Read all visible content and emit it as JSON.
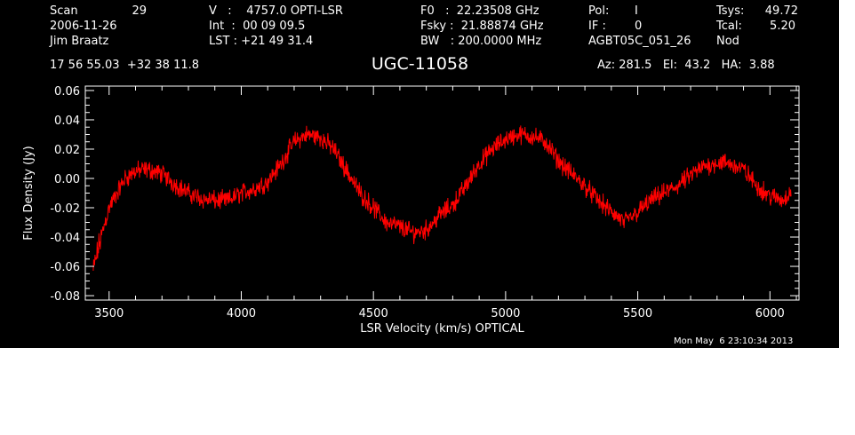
{
  "header": {
    "col1": {
      "scan_label": "Scan",
      "scan_value": "29",
      "date": "2006-11-26",
      "observer": "Jim Braatz"
    },
    "col2": {
      "v_line": "V   :    4757.0 OPTI-LSR",
      "int_line": "Int  :  00 09 09.5",
      "lst_line": "LST : +21 49 31.4"
    },
    "col3": {
      "f0_line": "F0   :  22.23508 GHz",
      "fsky_line": "Fsky :  21.88874 GHz",
      "bw_line": "BW   : 200.0000 MHz"
    },
    "col4": {
      "pol_label": "Pol:",
      "pol_value": "I",
      "if_label": "IF :",
      "if_value": "0",
      "project": "AGBT05C_051_26"
    },
    "col5": {
      "tsys_label": "Tsys:",
      "tsys_value": "49.72",
      "tcal_label": "Tcal:",
      "tcal_value": "5.20",
      "mode": "Nod"
    },
    "coords": "17 56 55.03  +32 38 11.8",
    "source": "UGC-11058",
    "az_el_ha": "Az: 281.5   El:  43.2   HA:  3.88"
  },
  "footer": {
    "timestamp": "Mon May  6 23:10:34 2013"
  },
  "colors": {
    "background": "#000000",
    "axes": "#ffffff",
    "trace": "#ff0000"
  },
  "chart_data": {
    "type": "line",
    "title": "UGC-11058",
    "xlabel": "LSR Velocity (km/s) OPTICAL",
    "ylabel": "Flux Density (Jy)",
    "xlim": [
      3410,
      6110
    ],
    "ylim": [
      -0.083,
      0.063
    ],
    "x_ticks": [
      3500,
      4000,
      4500,
      5000,
      5500,
      6000
    ],
    "x_tick_labels": [
      "3500",
      "4000",
      "4500",
      "5000",
      "5500",
      "6000"
    ],
    "y_ticks": [
      -0.08,
      -0.06,
      -0.04,
      -0.02,
      0.0,
      0.02,
      0.04,
      0.06
    ],
    "y_tick_labels": [
      "-0.08",
      "-0.06",
      "-0.04",
      "-0.02",
      "0.00",
      "0.02",
      "0.04",
      "0.06"
    ],
    "grid": false,
    "legend": "none",
    "series": [
      {
        "color": "#ff0000",
        "x": [
          3440,
          3460,
          3480,
          3500,
          3530,
          3560,
          3600,
          3650,
          3700,
          3750,
          3800,
          3850,
          3900,
          3950,
          4000,
          4050,
          4100,
          4150,
          4200,
          4250,
          4300,
          4350,
          4400,
          4450,
          4500,
          4550,
          4600,
          4650,
          4700,
          4750,
          4800,
          4850,
          4900,
          4950,
          5000,
          5050,
          5100,
          5150,
          5200,
          5250,
          5300,
          5350,
          5400,
          5450,
          5500,
          5550,
          5600,
          5650,
          5700,
          5750,
          5800,
          5850,
          5900,
          5950,
          6000,
          6050,
          6080
        ],
        "y": [
          -0.063,
          -0.047,
          -0.033,
          -0.02,
          -0.01,
          0.0,
          0.005,
          0.006,
          0.003,
          -0.004,
          -0.01,
          -0.014,
          -0.015,
          -0.015,
          -0.01,
          -0.007,
          -0.002,
          0.01,
          0.025,
          0.03,
          0.028,
          0.02,
          0.005,
          -0.01,
          -0.02,
          -0.03,
          -0.033,
          -0.037,
          -0.035,
          -0.025,
          -0.018,
          -0.005,
          0.01,
          0.02,
          0.027,
          0.03,
          0.029,
          0.025,
          0.012,
          0.003,
          -0.005,
          -0.015,
          -0.023,
          -0.03,
          -0.023,
          -0.015,
          -0.01,
          -0.005,
          0.002,
          0.008,
          0.011,
          0.01,
          0.006,
          -0.005,
          -0.012,
          -0.015,
          -0.008
        ]
      }
    ]
  }
}
